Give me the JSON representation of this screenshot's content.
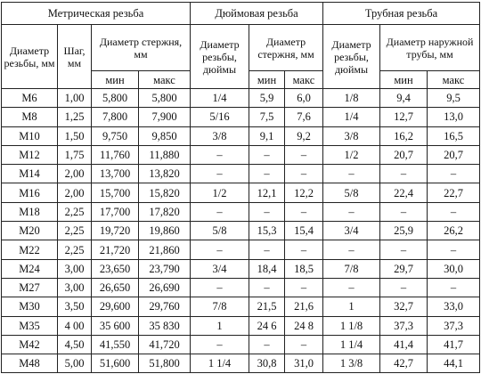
{
  "groups": {
    "metric": "Метрическая резьба",
    "inch": "Дюймовая резьба",
    "pipe": "Трубная резьба"
  },
  "headers": {
    "metric_dia": "Диаметр резьбы, мм",
    "metric_pitch": "Шаг, мм",
    "metric_rod": "Диаметр стержня, мм",
    "inch_dia": "Диаметр резьбы, дюймы",
    "inch_rod": "Диаметр стержня, мм",
    "pipe_dia": "Диаметр резьбы, дюймы",
    "pipe_outer": "Диаметр наружной трубы, мм",
    "min": "мин",
    "max": "макс"
  },
  "rows": [
    [
      "М6",
      "1,00",
      "5,800",
      "5,800",
      "1/4",
      "5,9",
      "6,0",
      "1/8",
      "9,4",
      "9,5"
    ],
    [
      "М8",
      "1,25",
      "7,800",
      "7,900",
      "5/16",
      "7,5",
      "7,6",
      "1/4",
      "12,7",
      "13,0"
    ],
    [
      "М10",
      "1,50",
      "9,750",
      "9,850",
      "3/8",
      "9,1",
      "9,2",
      "3/8",
      "16,2",
      "16,5"
    ],
    [
      "М12",
      "1,75",
      "11,760",
      "11,880",
      "–",
      "–",
      "–",
      "1/2",
      "20,7",
      "20,7"
    ],
    [
      "М14",
      "2,00",
      "13,700",
      "13,820",
      "–",
      "–",
      "–",
      "–",
      "–",
      "–"
    ],
    [
      "М16",
      "2,00",
      "15,700",
      "15,820",
      "1/2",
      "12,1",
      "12,2",
      "5/8",
      "22,4",
      "22,7"
    ],
    [
      "М18",
      "2,25",
      "17,700",
      "17,820",
      "–",
      "–",
      "–",
      "–",
      "–",
      "–"
    ],
    [
      "М20",
      "2,25",
      "19,720",
      "19,860",
      "5/8",
      "15,3",
      "15,4",
      "3/4",
      "25,9",
      "26,2"
    ],
    [
      "М22",
      "2,25",
      "21,720",
      "21,860",
      "–",
      "–",
      "–",
      "–",
      "–",
      "–"
    ],
    [
      "М24",
      "3,00",
      "23,650",
      "23,790",
      "3/4",
      "18,4",
      "18,5",
      "7/8",
      "29,7",
      "30,0"
    ],
    [
      "М27",
      "3,00",
      "26,650",
      "26,690",
      "–",
      "–",
      "–",
      "–",
      "–",
      "–"
    ],
    [
      "М30",
      "3,50",
      "29,600",
      "29,760",
      "7/8",
      "21,5",
      "21,6",
      "1",
      "32,7",
      "33,0"
    ],
    [
      "М35",
      "4 00",
      "35 600",
      "35 830",
      "1",
      "24 6",
      "24 8",
      "1 1/8",
      "37,3",
      "37,3"
    ],
    [
      "М42",
      "4,50",
      "41,550",
      "41,720",
      "–",
      "–",
      "–",
      "1 1/4",
      "41,4",
      "41,7"
    ],
    [
      "М48",
      "5,00",
      "51,600",
      "51,800",
      "1 1/4",
      "30,8",
      "31,0",
      "1 3/8",
      "42,7",
      "44,1"
    ]
  ]
}
